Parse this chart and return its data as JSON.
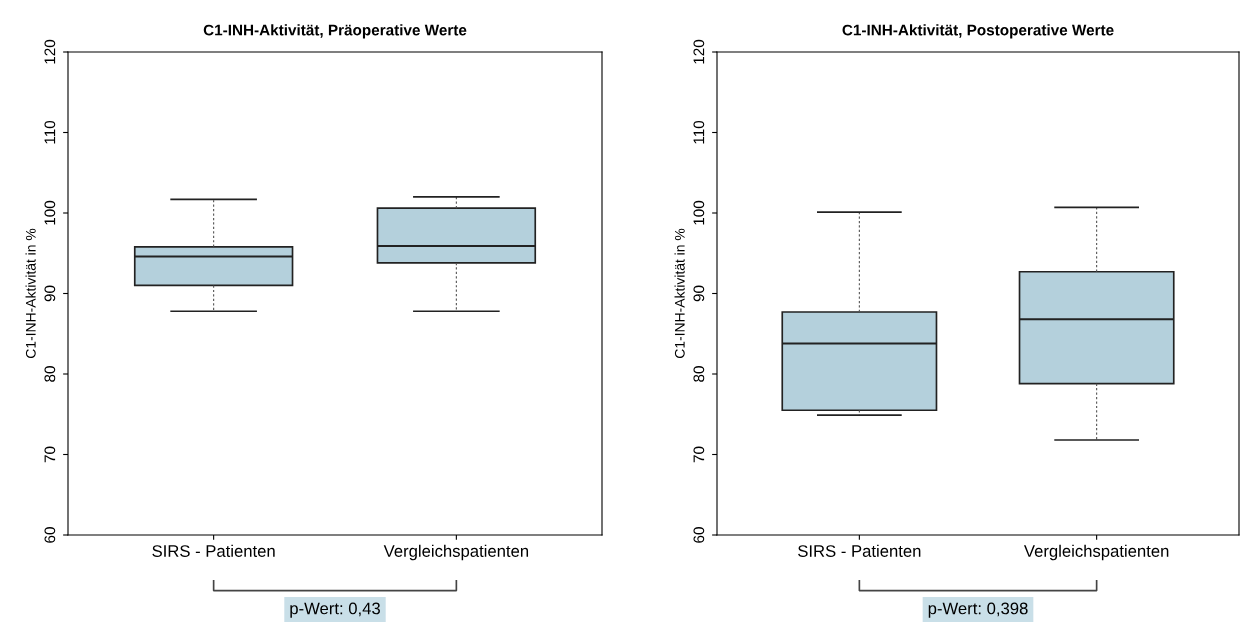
{
  "chart_data": [
    {
      "type": "box",
      "title": "C1-INH-Aktivität, Präoperative Werte",
      "ylabel": "C1-INH-Aktivität in %",
      "categories": [
        "SIRS - Patienten",
        "Vergleichspatienten"
      ],
      "series": [
        {
          "color": "#b4d0dc",
          "boxes": [
            {
              "low": 87.8,
              "q1": 91.0,
              "median": 94.6,
              "q3": 95.8,
              "high": 101.7
            },
            {
              "low": 87.8,
              "q1": 93.8,
              "median": 95.9,
              "q3": 100.6,
              "high": 102.0
            }
          ]
        }
      ],
      "ylim": [
        60,
        120
      ],
      "yticks": [
        60,
        70,
        80,
        90,
        100,
        110,
        120
      ],
      "grid": false,
      "legend": false,
      "annotations": [
        "p-Wert: 0,43"
      ]
    },
    {
      "type": "box",
      "title": "C1-INH-Aktivität, Postoperative Werte",
      "ylabel": "C1-INH-Aktivität in %",
      "categories": [
        "SIRS - Patienten",
        "Vergleichspatienten"
      ],
      "series": [
        {
          "color": "#b4d0dc",
          "boxes": [
            {
              "low": 74.9,
              "q1": 75.5,
              "median": 83.8,
              "q3": 87.7,
              "high": 100.1
            },
            {
              "low": 71.8,
              "q1": 78.8,
              "median": 86.8,
              "q3": 92.7,
              "high": 100.7
            }
          ]
        }
      ],
      "ylim": [
        60,
        120
      ],
      "yticks": [
        60,
        70,
        80,
        90,
        100,
        110,
        120
      ],
      "grid": false,
      "legend": false,
      "annotations": [
        "p-Wert: 0,398"
      ]
    }
  ]
}
